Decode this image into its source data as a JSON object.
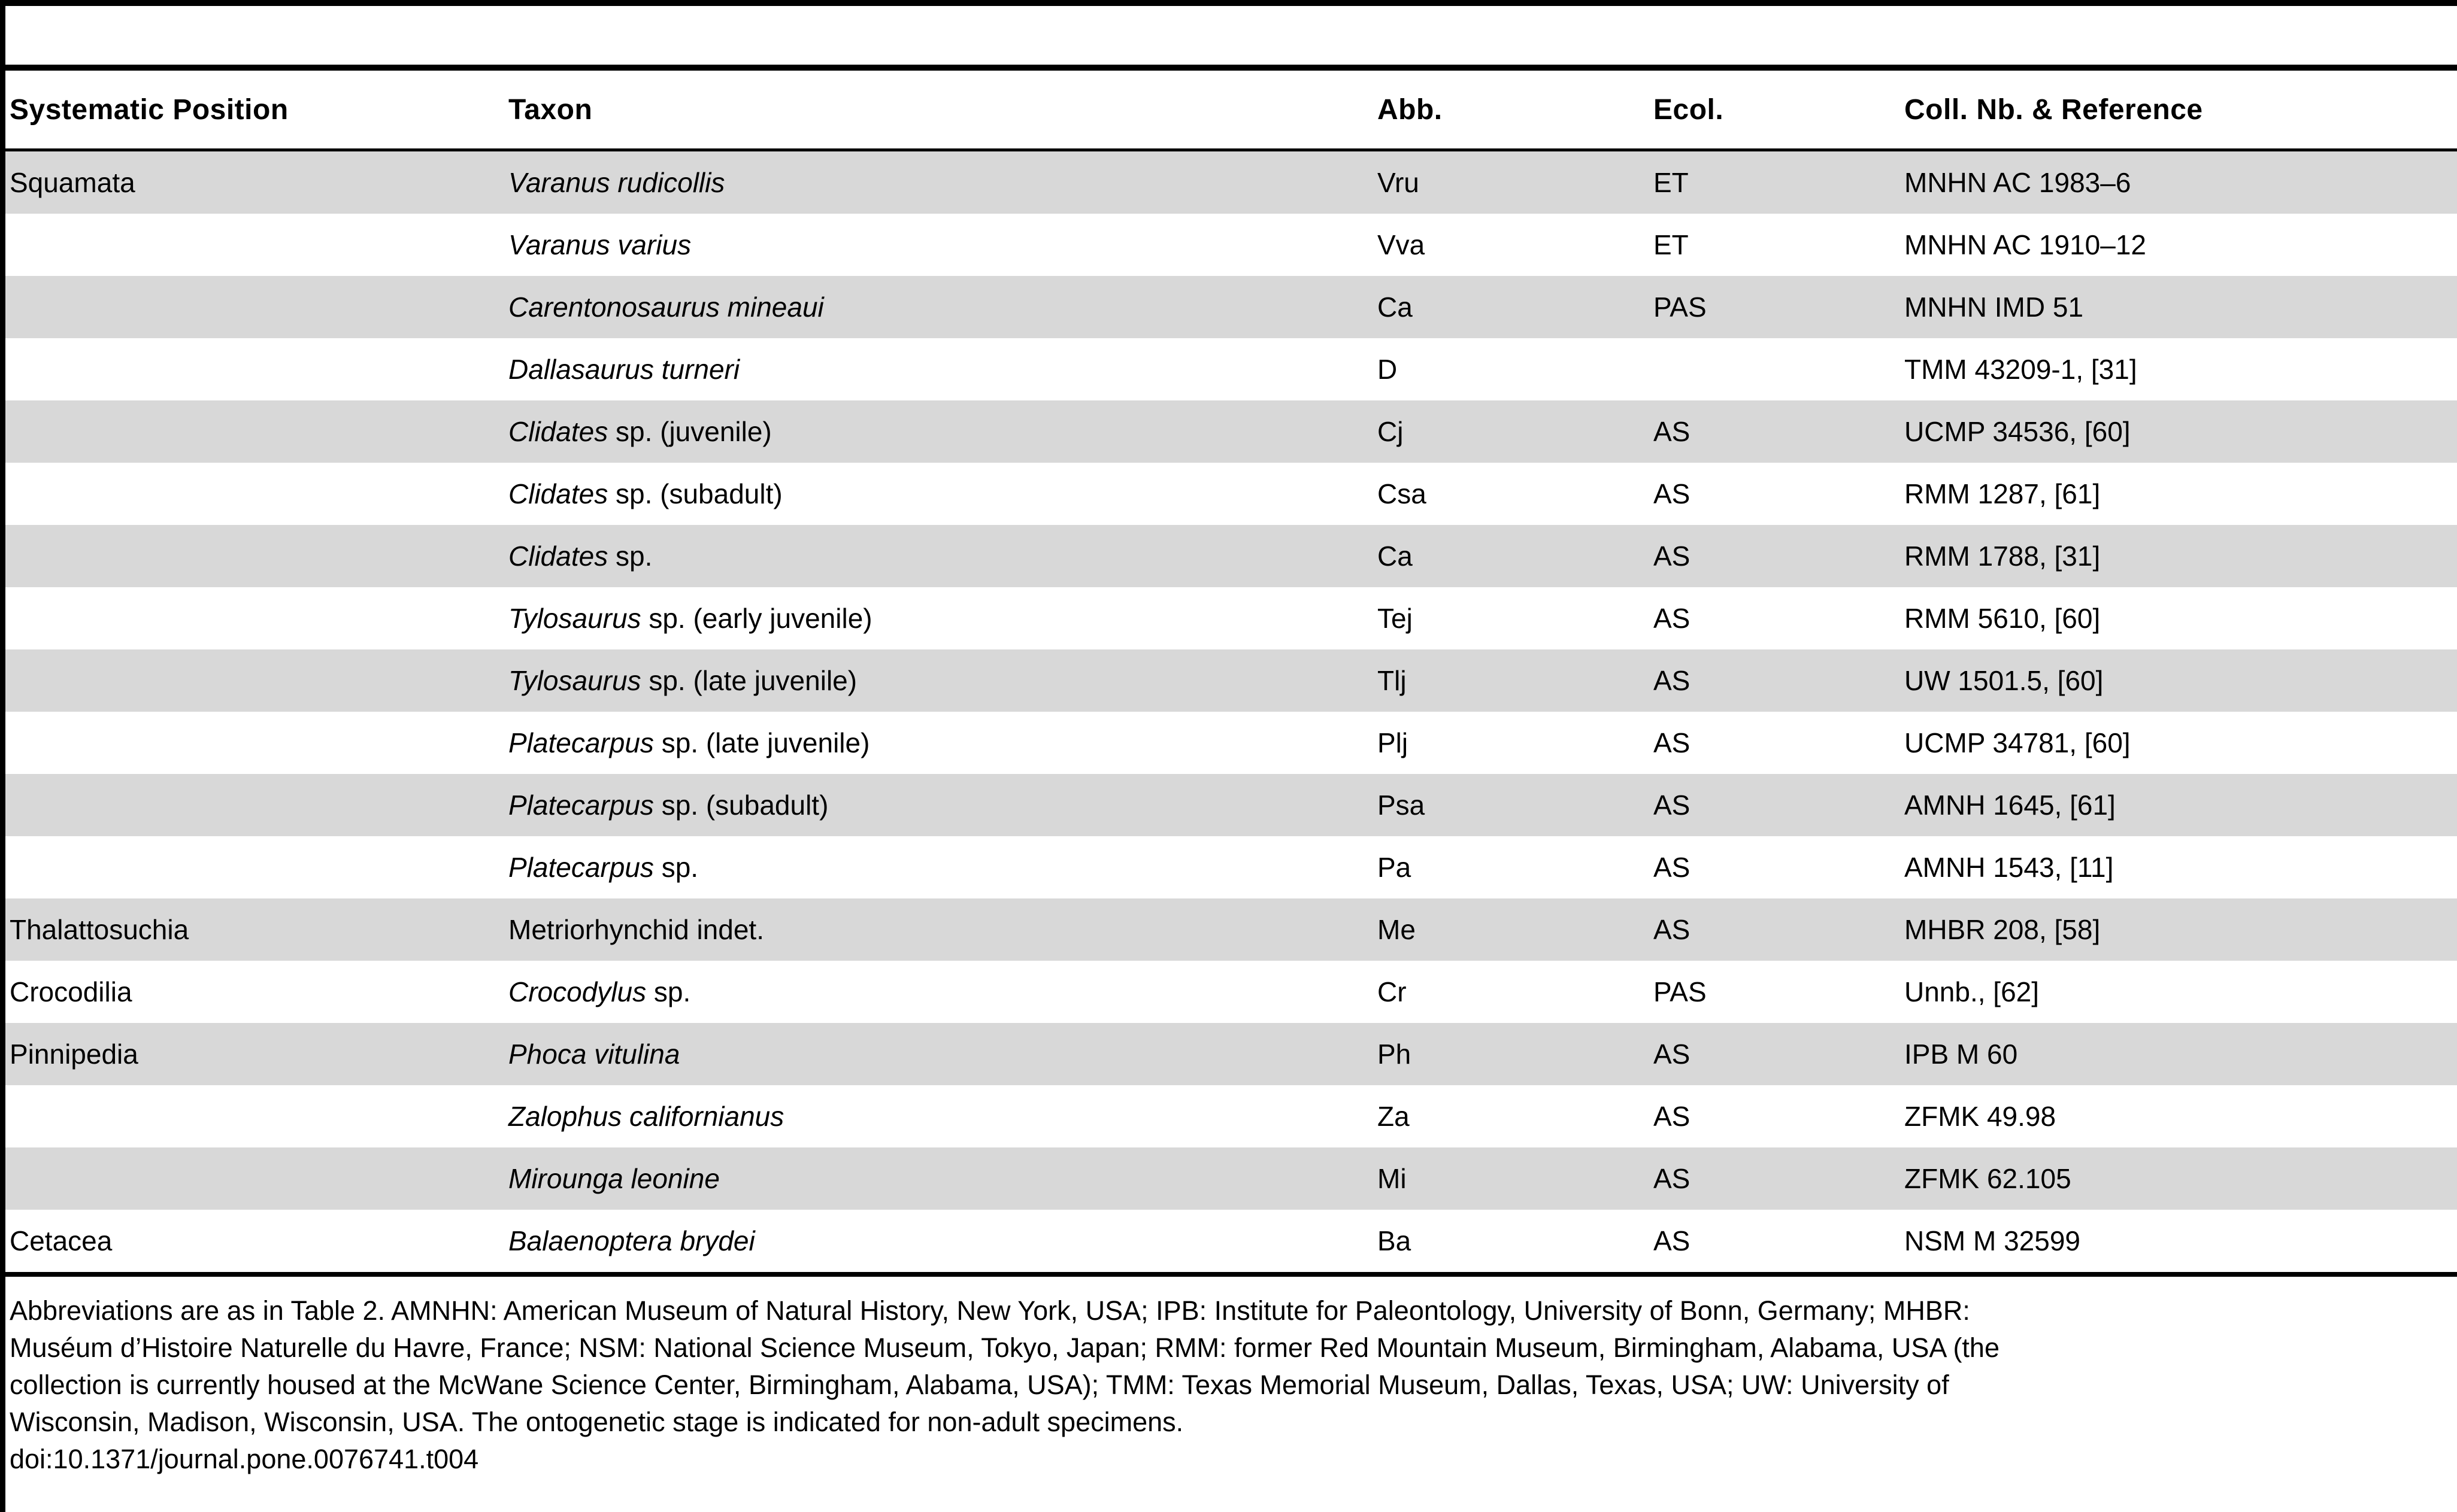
{
  "table": {
    "headers": [
      "Systematic Position",
      "Taxon",
      "Abb.",
      "Ecol.",
      "Coll. Nb. & Reference"
    ],
    "rows": [
      {
        "position": "Squamata",
        "taxon_italic": "Varanus rudicollis",
        "taxon_roman": "",
        "abb": "Vru",
        "ecol": "ET",
        "coll": "MNHN AC 1983–6"
      },
      {
        "position": "",
        "taxon_italic": "Varanus varius",
        "taxon_roman": "",
        "abb": "Vva",
        "ecol": "ET",
        "coll": "MNHN AC 1910–12"
      },
      {
        "position": "",
        "taxon_italic": "Carentonosaurus mineaui",
        "taxon_roman": "",
        "abb": "Ca",
        "ecol": "PAS",
        "coll": "MNHN IMD 51"
      },
      {
        "position": "",
        "taxon_italic": "Dallasaurus turneri",
        "taxon_roman": "",
        "abb": "D",
        "ecol": "",
        "coll": "TMM 43209-1, [31]"
      },
      {
        "position": "",
        "taxon_italic": "Clidates",
        "taxon_roman": " sp. (juvenile)",
        "abb": "Cj",
        "ecol": "AS",
        "coll": "UCMP 34536, [60]"
      },
      {
        "position": "",
        "taxon_italic": "Clidates",
        "taxon_roman": " sp. (subadult)",
        "abb": "Csa",
        "ecol": "AS",
        "coll": "RMM 1287, [61]"
      },
      {
        "position": "",
        "taxon_italic": "Clidates",
        "taxon_roman": " sp.",
        "abb": "Ca",
        "ecol": "AS",
        "coll": "RMM 1788, [31]"
      },
      {
        "position": "",
        "taxon_italic": "Tylosaurus",
        "taxon_roman": " sp. (early juvenile)",
        "abb": "Tej",
        "ecol": "AS",
        "coll": "RMM 5610, [60]"
      },
      {
        "position": "",
        "taxon_italic": "Tylosaurus",
        "taxon_roman": " sp. (late juvenile)",
        "abb": "Tlj",
        "ecol": "AS",
        "coll": "UW 1501.5, [60]"
      },
      {
        "position": "",
        "taxon_italic": "Platecarpus",
        "taxon_roman": " sp. (late juvenile)",
        "abb": "Plj",
        "ecol": "AS",
        "coll": "UCMP 34781, [60]"
      },
      {
        "position": "",
        "taxon_italic": "Platecarpus",
        "taxon_roman": " sp. (subadult)",
        "abb": "Psa",
        "ecol": "AS",
        "coll": "AMNH 1645, [61]"
      },
      {
        "position": "",
        "taxon_italic": "Platecarpus",
        "taxon_roman": " sp.",
        "abb": "Pa",
        "ecol": "AS",
        "coll": "AMNH 1543, [11]"
      },
      {
        "position": "Thalattosuchia",
        "taxon_italic": "",
        "taxon_roman": "Metriorhynchid indet.",
        "abb": "Me",
        "ecol": "AS",
        "coll": "MHBR 208, [58]"
      },
      {
        "position": "Crocodilia",
        "taxon_italic": "Crocodylus",
        "taxon_roman": " sp.",
        "abb": "Cr",
        "ecol": "PAS",
        "coll": "Unnb., [62]"
      },
      {
        "position": "Pinnipedia",
        "taxon_italic": "Phoca vitulina",
        "taxon_roman": "",
        "abb": "Ph",
        "ecol": "AS",
        "coll": "IPB M 60"
      },
      {
        "position": "",
        "taxon_italic": "Zalophus californianus",
        "taxon_roman": "",
        "abb": "Za",
        "ecol": "AS",
        "coll": "ZFMK 49.98"
      },
      {
        "position": "",
        "taxon_italic": "Mirounga leonine",
        "taxon_roman": "",
        "abb": "Mi",
        "ecol": "AS",
        "coll": "ZFMK 62.105"
      },
      {
        "position": "Cetacea",
        "taxon_italic": "Balaenoptera brydei",
        "taxon_roman": "",
        "abb": "Ba",
        "ecol": "AS",
        "coll": "NSM M 32599"
      }
    ]
  },
  "footnote": {
    "lines": [
      "Abbreviations are as in Table 2. AMNHN: American Museum of Natural History, New York, USA; IPB: Institute for Paleontology, University of Bonn, Germany; MHBR:",
      "Muséum d’Histoire Naturelle du Havre, France; NSM: National Science Museum, Tokyo, Japan; RMM: former Red Mountain Museum, Birmingham, Alabama, USA (the",
      "collection is currently housed at the McWane Science Center, Birmingham, Alabama, USA); TMM: Texas Memorial Museum, Dallas, Texas, USA; UW: University of",
      "Wisconsin, Madison, Wisconsin, USA. The ontogenetic stage is indicated for non-adult specimens."
    ],
    "doi": "doi:10.1371/journal.pone.0076741.t004"
  },
  "colors": {
    "row_shade": "#d8d8d8",
    "rule": "#000000",
    "background": "#ffffff"
  }
}
